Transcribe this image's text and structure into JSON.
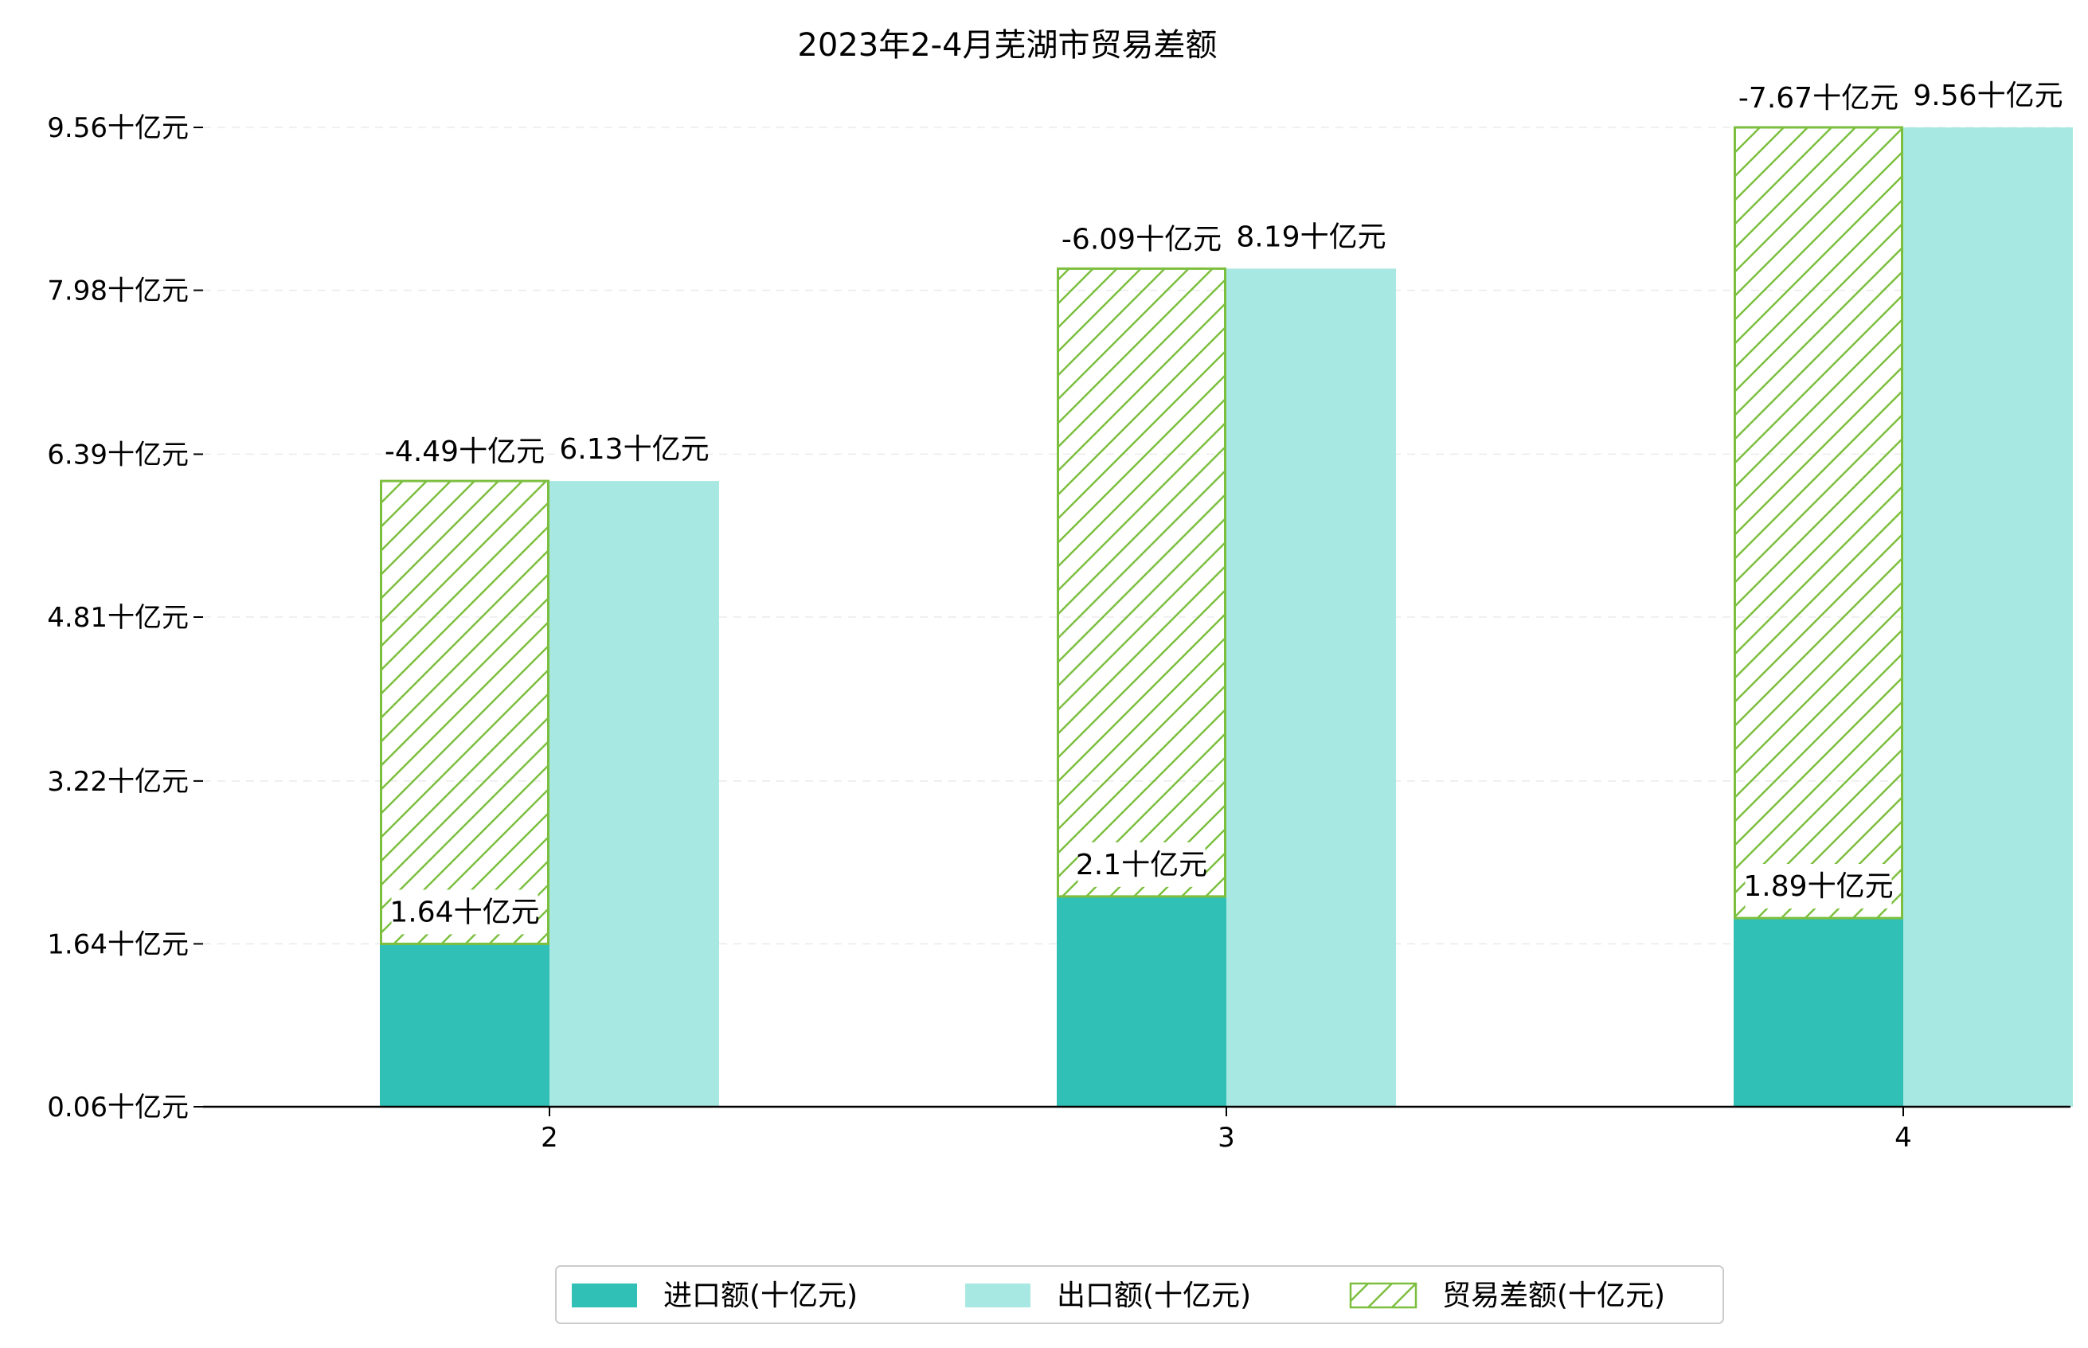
{
  "colors": {
    "import_bar": "#31c0b5",
    "export_bar": "#a8e8e2",
    "balance_hatch": "#7cbf3f",
    "grid": "#dddddd",
    "axis": "#000000"
  },
  "chart_data": {
    "type": "bar",
    "title": "2023年2-4月芜湖市贸易差额",
    "xlabel": "",
    "ylabel": "",
    "categories": [
      "2",
      "3",
      "4"
    ],
    "y_ticks": [
      "0.06十亿元",
      "1.64十亿元",
      "3.22十亿元",
      "4.81十亿元",
      "6.39十亿元",
      "7.98十亿元",
      "9.56十亿元"
    ],
    "y_tick_values": [
      0.06,
      1.64,
      3.22,
      4.81,
      6.39,
      7.98,
      9.56
    ],
    "ylim": [
      0.06,
      9.56
    ],
    "grid": "horizontal dashed",
    "legend_position": "bottom-center",
    "series": [
      {
        "name": "进口额(十亿元)",
        "values": [
          1.64,
          2.1,
          1.89
        ],
        "labels": [
          "1.64十亿元",
          "2.1十亿元",
          "1.89十亿元"
        ]
      },
      {
        "name": "出口额(十亿元)",
        "values": [
          6.13,
          8.19,
          9.56
        ],
        "labels": [
          "6.13十亿元",
          "8.19十亿元",
          "9.56十亿元"
        ]
      },
      {
        "name": "贸易差额(十亿元)",
        "values": [
          -4.49,
          -6.09,
          -7.67
        ],
        "labels": [
          "-4.49十亿元",
          "-6.09十亿元",
          "-7.67十亿元"
        ]
      }
    ]
  }
}
